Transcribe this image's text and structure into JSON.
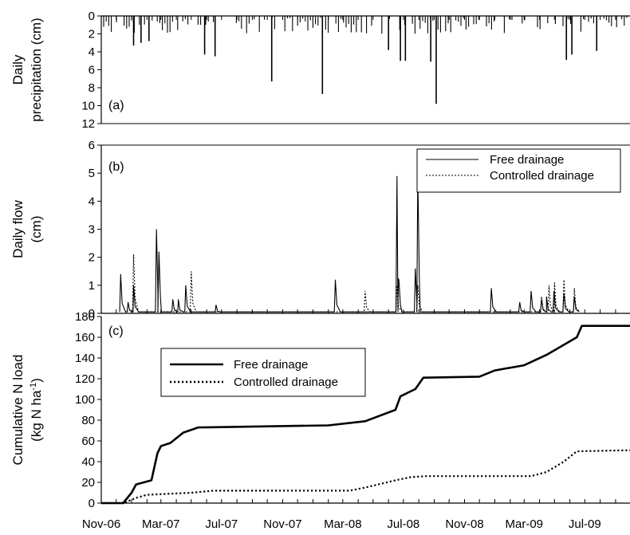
{
  "chart_data": [
    {
      "panel": "(a)",
      "type": "bar",
      "ylabel_line1": "Daily",
      "ylabel_line2": "precipitation (cm)",
      "ylim": [
        0,
        12
      ],
      "y_inverted": true,
      "yticks": [
        "0",
        "2",
        "4",
        "6",
        "8",
        "10",
        "12"
      ],
      "grid": false,
      "x": [
        "2007-01-05",
        "2007-01-20",
        "2007-02-05",
        "2007-05-28",
        "2007-06-18",
        "2007-10-10",
        "2008-01-20",
        "2008-06-01",
        "2008-06-25",
        "2008-07-05",
        "2008-08-25",
        "2008-09-05",
        "2009-05-25",
        "2009-06-05",
        "2009-07-25"
      ],
      "values": [
        3.3,
        3.0,
        2.8,
        4.3,
        4.5,
        7.3,
        8.7,
        3.8,
        5.0,
        5.0,
        5.1,
        9.8,
        4.9,
        4.3,
        3.9
      ]
    },
    {
      "panel": "(b)",
      "type": "line",
      "ylabel_line1": "Daily flow",
      "ylabel_line2": "(cm)",
      "ylim": [
        0,
        6
      ],
      "yticks": [
        "0",
        "1",
        "2",
        "3",
        "4",
        "5",
        "6"
      ],
      "legend_position": "top-right",
      "series": [
        {
          "name": "Free drainage",
          "style": "solid",
          "peaks": [
            {
              "date": "2006-12-10",
              "value": 1.4
            },
            {
              "date": "2006-12-25",
              "value": 0.4
            },
            {
              "date": "2007-01-05",
              "value": 1.0
            },
            {
              "date": "2007-02-20",
              "value": 3.0
            },
            {
              "date": "2007-02-25",
              "value": 2.2
            },
            {
              "date": "2007-03-25",
              "value": 0.5
            },
            {
              "date": "2007-04-05",
              "value": 0.5
            },
            {
              "date": "2007-04-20",
              "value": 1.0
            },
            {
              "date": "2007-06-20",
              "value": 0.3
            },
            {
              "date": "2008-02-15",
              "value": 1.2
            },
            {
              "date": "2008-06-18",
              "value": 4.9
            },
            {
              "date": "2008-06-22",
              "value": 1.2
            },
            {
              "date": "2008-07-25",
              "value": 1.6
            },
            {
              "date": "2008-07-30",
              "value": 5.0
            },
            {
              "date": "2008-12-25",
              "value": 0.9
            },
            {
              "date": "2009-02-20",
              "value": 0.4
            },
            {
              "date": "2009-03-15",
              "value": 0.8
            },
            {
              "date": "2009-04-05",
              "value": 0.5
            },
            {
              "date": "2009-04-15",
              "value": 0.6
            },
            {
              "date": "2009-04-30",
              "value": 0.8
            },
            {
              "date": "2009-05-20",
              "value": 0.7
            },
            {
              "date": "2009-06-10",
              "value": 0.6
            }
          ]
        },
        {
          "name": "Controlled drainage",
          "style": "dotted",
          "peaks": [
            {
              "date": "2007-01-05",
              "value": 2.1
            },
            {
              "date": "2007-05-01",
              "value": 1.5
            },
            {
              "date": "2008-04-15",
              "value": 0.8
            },
            {
              "date": "2008-06-18",
              "value": 1.0
            },
            {
              "date": "2008-07-30",
              "value": 1.0
            },
            {
              "date": "2009-04-05",
              "value": 0.6
            },
            {
              "date": "2009-04-20",
              "value": 1.0
            },
            {
              "date": "2009-05-01",
              "value": 1.1
            },
            {
              "date": "2009-05-20",
              "value": 1.2
            },
            {
              "date": "2009-06-10",
              "value": 0.9
            }
          ]
        }
      ]
    },
    {
      "panel": "(c)",
      "type": "line",
      "ylabel_line1": "Cumulative N load",
      "ylabel_line2_pre": "(kg N ha",
      "ylabel_line2_sup": "-1",
      "ylabel_line2_post": ")",
      "ylim": [
        0,
        180
      ],
      "yticks": [
        "0",
        "20",
        "40",
        "60",
        "80",
        "100",
        "120",
        "140",
        "160",
        "180"
      ],
      "legend_position": "top-left",
      "series": [
        {
          "name": "Free drainage",
          "style": "solid-thick",
          "x": [
            "2006-11-01",
            "2006-12-15",
            "2007-01-01",
            "2007-01-10",
            "2007-02-10",
            "2007-02-22",
            "2007-03-01",
            "2007-03-20",
            "2007-04-15",
            "2007-05-15",
            "2008-02-01",
            "2008-04-15",
            "2008-06-15",
            "2008-06-25",
            "2008-07-25",
            "2008-08-10",
            "2008-12-01",
            "2009-01-01",
            "2009-03-01",
            "2009-04-15",
            "2009-06-15",
            "2009-06-25",
            "2009-09-30"
          ],
          "y": [
            0,
            0,
            10,
            18,
            22,
            48,
            55,
            58,
            68,
            73,
            75,
            79,
            90,
            103,
            110,
            121,
            122,
            128,
            133,
            143,
            160,
            171,
            171
          ]
        },
        {
          "name": "Controlled drainage",
          "style": "dotted-thick",
          "x": [
            "2006-11-01",
            "2006-12-15",
            "2007-01-10",
            "2007-02-01",
            "2007-05-01",
            "2007-06-15",
            "2008-01-15",
            "2008-03-15",
            "2008-04-15",
            "2008-06-15",
            "2008-07-15",
            "2008-08-15",
            "2009-03-15",
            "2009-04-15",
            "2009-05-20",
            "2009-06-15",
            "2009-09-30"
          ],
          "y": [
            0,
            0,
            5,
            8,
            10,
            12,
            12,
            12,
            15,
            22,
            25,
            26,
            26,
            30,
            40,
            50,
            51
          ]
        }
      ]
    }
  ],
  "x_axis": {
    "tick_labels": [
      "Nov-06",
      "Mar-07",
      "Jul-07",
      "Nov-07",
      "Mar-08",
      "Jul-08",
      "Nov-08",
      "Mar-09",
      "Jul-09"
    ],
    "range": [
      "2006-11-01",
      "2009-09-30"
    ]
  }
}
